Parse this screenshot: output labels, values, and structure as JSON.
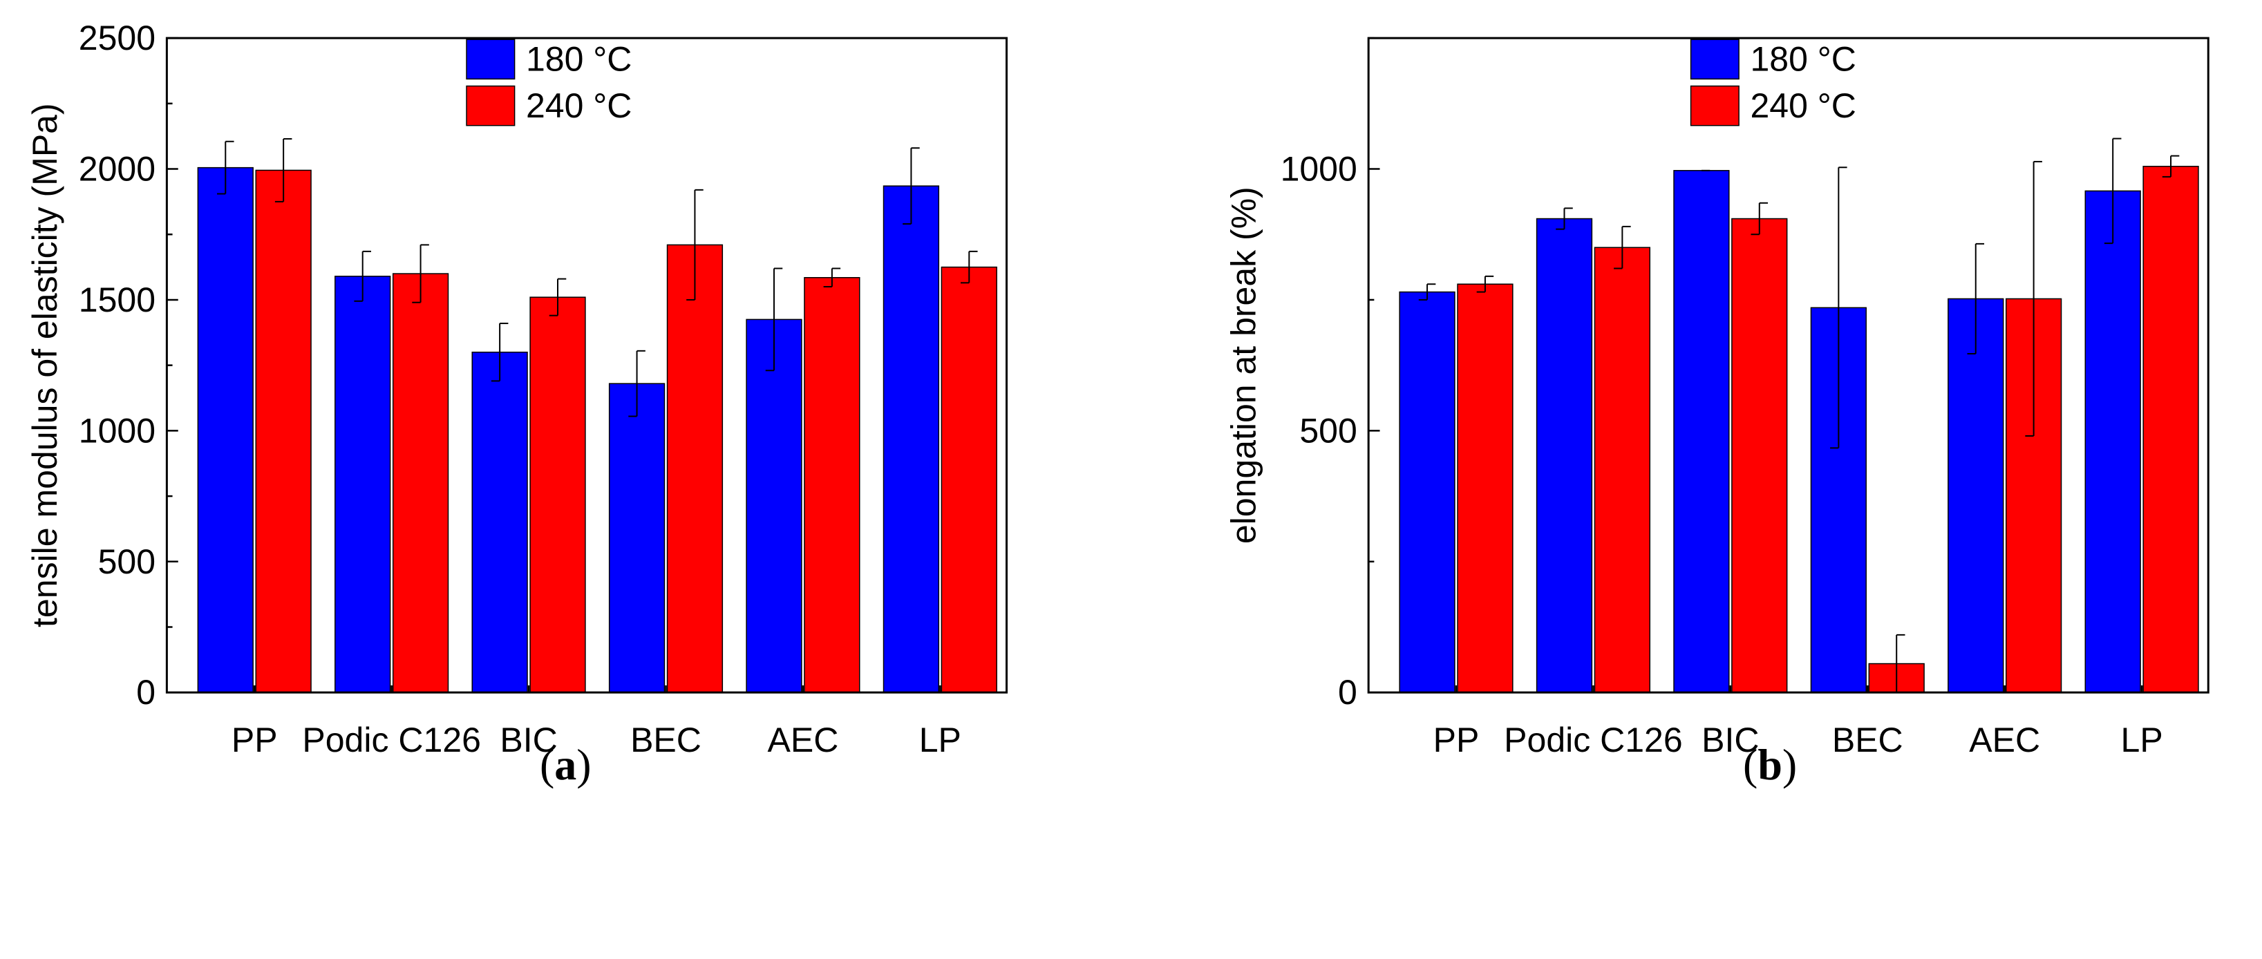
{
  "colors": {
    "series_180": "#0000ff",
    "series_240": "#ff0000",
    "axis": "#000000",
    "bar_outline": "#000000"
  },
  "chart_data": [
    {
      "panel": "a",
      "caption": {
        "open": "(",
        "letter": "a",
        "close": ")"
      },
      "type": "bar",
      "title": "",
      "xlabel": "",
      "ylabel": "tensile modulus of elasticity (MPa)",
      "ylim": [
        0,
        2500
      ],
      "yticks": [
        0,
        500,
        1000,
        1500,
        2000,
        2500
      ],
      "categories": [
        "PP",
        "Podic C126",
        "BIC",
        "BEC",
        "AEC",
        "LP"
      ],
      "legend_position": "top-center",
      "series": [
        {
          "name": "180 °C",
          "color": "#0000ff",
          "values": [
            2005,
            1590,
            1300,
            1180,
            1425,
            1935
          ],
          "errors": [
            100,
            95,
            110,
            125,
            195,
            145
          ]
        },
        {
          "name": "240 °C",
          "color": "#ff0000",
          "values": [
            1995,
            1600,
            1510,
            1710,
            1585,
            1625
          ],
          "errors": [
            120,
            110,
            70,
            210,
            35,
            60
          ]
        }
      ]
    },
    {
      "panel": "b",
      "caption": {
        "open": "(",
        "letter": "b",
        "close": ")"
      },
      "type": "bar",
      "title": "",
      "xlabel": "",
      "ylabel": "elongation at break (%)",
      "ylim": [
        0,
        1250
      ],
      "yticks": [
        0,
        500,
        1000
      ],
      "categories": [
        "PP",
        "Podic C126",
        "BIC",
        "BEC",
        "AEC",
        "LP"
      ],
      "legend_position": "top-center",
      "series": [
        {
          "name": "180 °C",
          "color": "#0000ff",
          "values": [
            765,
            905,
            997,
            735,
            752,
            958
          ],
          "errors": [
            15,
            20,
            0,
            268,
            105,
            100
          ]
        },
        {
          "name": "240 °C",
          "color": "#ff0000",
          "values": [
            780,
            850,
            905,
            55,
            752,
            1005
          ],
          "errors": [
            15,
            40,
            30,
            55,
            262,
            20
          ]
        }
      ]
    }
  ]
}
